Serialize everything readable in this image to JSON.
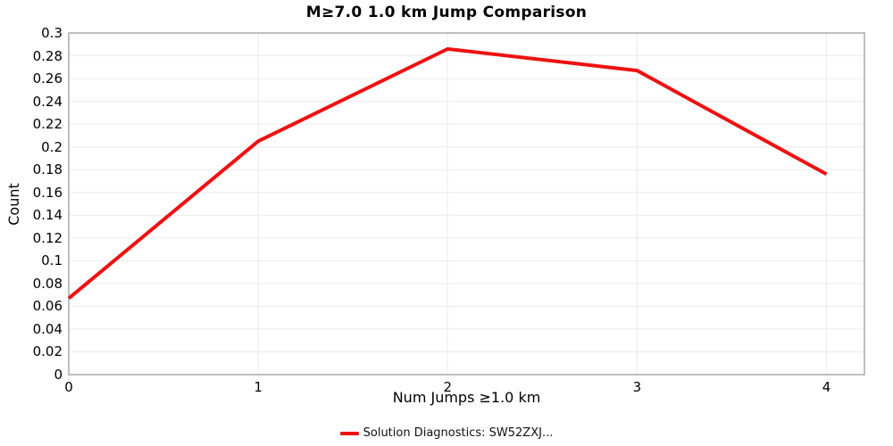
{
  "title": "M≥7.0 1.0 km Jump Comparison",
  "legend": {
    "label": "Solution Diagnostics: SW52ZXJ..."
  },
  "colors": {
    "series_line": "#ee1111",
    "grid_line": "#ebebeb",
    "plot_border": "#aaaaaa",
    "text": "#000000"
  },
  "chart_data": {
    "type": "line",
    "title": "M≥7.0 1.0 km Jump Comparison",
    "xlabel": "Num Jumps ≥1.0 km",
    "ylabel": "Count",
    "x": [
      0,
      1,
      2,
      3,
      4
    ],
    "series": [
      {
        "name": "Solution Diagnostics: SW52ZXJ...",
        "values": [
          0.067,
          0.205,
          0.286,
          0.267,
          0.176
        ],
        "color": "#ee1111",
        "line_width": 4
      }
    ],
    "xlim": [
      0,
      4.2
    ],
    "ylim": [
      0,
      0.3
    ],
    "x_ticks": [
      0,
      1,
      2,
      3,
      4
    ],
    "y_tick_step": 0.02,
    "grid": true,
    "legend_position": "bottom"
  }
}
